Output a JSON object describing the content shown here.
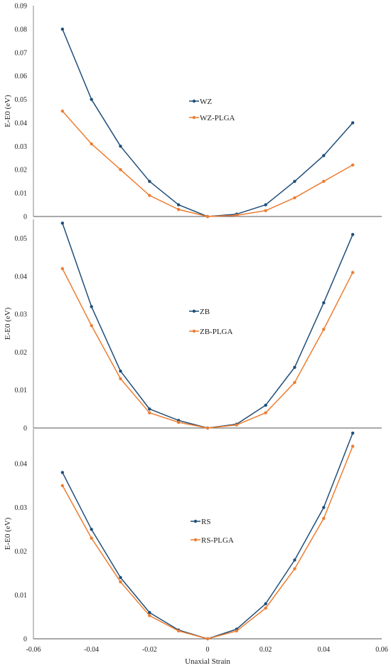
{
  "figure": {
    "xlabel": "Unaxial Strain",
    "x_ticks": [
      "-0.06",
      "-0.04",
      "-0.02",
      "0",
      "0.02",
      "0.04",
      "0.06"
    ]
  },
  "colors": {
    "blue": "#1f4e79",
    "orange": "#ed7d31"
  },
  "chart_data": [
    {
      "type": "line",
      "ylabel": "E-E0 (eV)",
      "ylim": [
        0,
        0.09
      ],
      "y_ticks": [
        "0",
        "0.01",
        "0.02",
        "0.03",
        "0.04",
        "0.05",
        "0.06",
        "0.07",
        "0.08",
        "0.09"
      ],
      "x": [
        -0.05,
        -0.04,
        -0.03,
        -0.02,
        -0.01,
        0,
        0.01,
        0.02,
        0.03,
        0.04,
        0.05
      ],
      "series": [
        {
          "name": "WZ",
          "values": [
            0.08,
            0.05,
            0.03,
            0.015,
            0.005,
            0,
            0.001,
            0.005,
            0.015,
            0.026,
            0.04
          ]
        },
        {
          "name": "WZ-PLGA",
          "values": [
            0.045,
            0.031,
            0.02,
            0.009,
            0.003,
            0,
            0.0005,
            0.0025,
            0.008,
            0.015,
            0.022
          ]
        }
      ]
    },
    {
      "type": "line",
      "ylabel": "E-E0 (eV)",
      "ylim": [
        0,
        0.055
      ],
      "y_ticks": [
        "0",
        "0.01",
        "0.02",
        "0.03",
        "0.04",
        "0.05"
      ],
      "x": [
        -0.05,
        -0.04,
        -0.03,
        -0.02,
        -0.01,
        0,
        0.01,
        0.02,
        0.03,
        0.04,
        0.05
      ],
      "series": [
        {
          "name": "ZB",
          "values": [
            0.054,
            0.032,
            0.015,
            0.005,
            0.002,
            0,
            0.001,
            0.006,
            0.016,
            0.033,
            0.051
          ]
        },
        {
          "name": "ZB-PLGA",
          "values": [
            0.042,
            0.027,
            0.013,
            0.004,
            0.0015,
            0,
            0.0008,
            0.004,
            0.012,
            0.026,
            0.041
          ]
        }
      ]
    },
    {
      "type": "line",
      "ylabel": "E-E0 (eV)",
      "ylim": [
        0,
        0.048
      ],
      "y_ticks": [
        "0",
        "0.01",
        "0.02",
        "0.03",
        "0.04"
      ],
      "x": [
        -0.05,
        -0.04,
        -0.03,
        -0.02,
        -0.01,
        0,
        0.01,
        0.02,
        0.03,
        0.04,
        0.05
      ],
      "series": [
        {
          "name": "RS",
          "values": [
            0.038,
            0.025,
            0.014,
            0.006,
            0.002,
            0,
            0.0022,
            0.008,
            0.018,
            0.03,
            0.047
          ]
        },
        {
          "name": "RS-PLGA",
          "values": [
            0.035,
            0.023,
            0.013,
            0.0053,
            0.0018,
            0,
            0.0018,
            0.007,
            0.016,
            0.0275,
            0.044
          ]
        }
      ]
    }
  ]
}
